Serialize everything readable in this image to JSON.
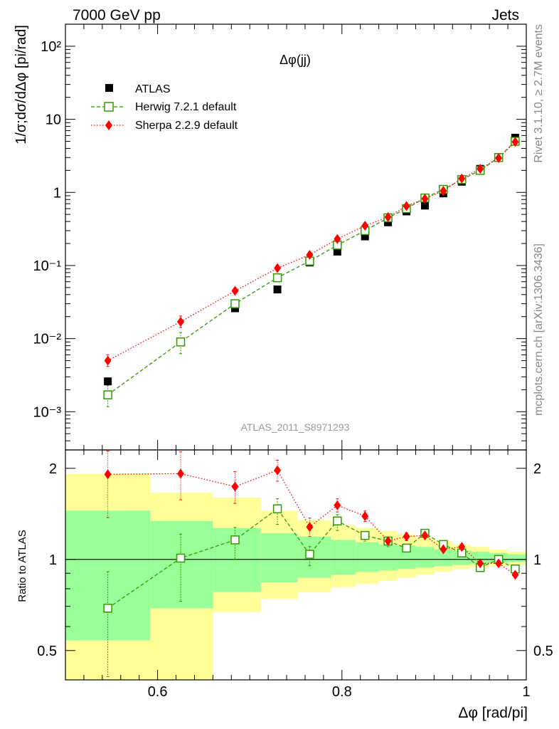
{
  "header": {
    "left": "7000 GeV pp",
    "right": "Jets"
  },
  "side_text": {
    "upper": "Rivet 3.1.10, ≥ 2.7M events",
    "lower": "mcplots.cern.ch [arXiv:1306.3436]"
  },
  "watermark": "ATLAS_2011_S8971293",
  "colors": {
    "atlas": "#000000",
    "herwig": "#339900",
    "sherpa": "#ff0000",
    "band_inner": "#99ff99",
    "band_outer": "#ffff99"
  },
  "chart_data": [
    {
      "type": "scatter",
      "title": "Δφ(jj)",
      "ylabel": "1/σ;dσ/dΔφ [pi/rad]",
      "yscale": "log",
      "xlim": [
        0.5,
        1.0
      ],
      "ylim": [
        0.0003,
        200
      ],
      "y_ticks": [
        "10⁻³",
        "10⁻²",
        "10⁻¹",
        "1",
        "10",
        "10²"
      ],
      "legend_position": "top-left",
      "x": [
        0.546,
        0.625,
        0.684,
        0.73,
        0.765,
        0.795,
        0.825,
        0.85,
        0.87,
        0.89,
        0.91,
        0.93,
        0.95,
        0.97,
        0.988
      ],
      "series": [
        {
          "name": "ATLAS",
          "values": [
            0.0026,
            0.009,
            0.026,
            0.047,
            0.11,
            0.155,
            0.25,
            0.39,
            0.55,
            0.66,
            0.97,
            1.4,
            2.1,
            3.0,
            5.6
          ]
        },
        {
          "name": "Herwig 7.2.1 default",
          "values": [
            0.0017,
            0.009,
            0.03,
            0.068,
            0.115,
            0.19,
            0.3,
            0.45,
            0.6,
            0.84,
            1.1,
            1.5,
            2.0,
            3.0,
            5.0
          ]
        },
        {
          "name": "Sherpa 2.2.9 default",
          "values": [
            0.005,
            0.017,
            0.045,
            0.092,
            0.14,
            0.23,
            0.35,
            0.46,
            0.65,
            0.82,
            1.05,
            1.55,
            2.1,
            2.95,
            4.9
          ]
        }
      ]
    },
    {
      "type": "scatter",
      "xlabel": "Δφ [rad/pi]",
      "ylabel": "Ratio to ATLAS",
      "xlim": [
        0.5,
        1.0
      ],
      "ylim": [
        0.4,
        2.3
      ],
      "x_ticks": [
        "0.6",
        "0.8",
        "1"
      ],
      "y_ticks": [
        "0.5",
        "1",
        "2"
      ],
      "reference_line": 1,
      "series": [
        {
          "name": "Herwig 7.2.1 default",
          "x": [
            0.546,
            0.625,
            0.684,
            0.73,
            0.765,
            0.795,
            0.825,
            0.85,
            0.87,
            0.89,
            0.91,
            0.93,
            0.95,
            0.97,
            0.988
          ],
          "values": [
            0.69,
            1.01,
            1.16,
            1.47,
            1.04,
            1.34,
            1.2,
            1.15,
            1.09,
            1.22,
            1.12,
            1.05,
            0.94,
            1.0,
            0.93
          ]
        },
        {
          "name": "Sherpa 2.2.9 default",
          "x": [
            0.546,
            0.625,
            0.684,
            0.73,
            0.765,
            0.795,
            0.825,
            0.85,
            0.87,
            0.89,
            0.91,
            0.93,
            0.95,
            0.97,
            0.988
          ],
          "values": [
            1.91,
            1.92,
            1.74,
            1.97,
            1.28,
            1.51,
            1.39,
            1.15,
            1.19,
            1.2,
            1.08,
            1.1,
            0.97,
            0.97,
            0.89
          ]
        }
      ],
      "bands": [
        {
          "x_edges": [
            0.5,
            0.592,
            0.66,
            0.712,
            0.752,
            0.788,
            0.815,
            0.84,
            0.86,
            0.88,
            0.9,
            0.92,
            0.94,
            0.96,
            0.98,
            1.0
          ],
          "inner_low": [
            0.54,
            0.69,
            0.78,
            0.84,
            0.87,
            0.89,
            0.91,
            0.92,
            0.93,
            0.94,
            0.95,
            0.96,
            0.97,
            0.975,
            0.98
          ],
          "inner_high": [
            1.45,
            1.34,
            1.27,
            1.22,
            1.19,
            1.16,
            1.14,
            1.12,
            1.11,
            1.1,
            1.08,
            1.07,
            1.06,
            1.05,
            1.04
          ],
          "outer_low": [
            0.4,
            0.4,
            0.67,
            0.74,
            0.78,
            0.81,
            0.83,
            0.85,
            0.87,
            0.89,
            0.91,
            0.93,
            0.94,
            0.95,
            0.96
          ],
          "outer_high": [
            1.92,
            1.66,
            1.6,
            1.45,
            1.35,
            1.3,
            1.27,
            1.24,
            1.21,
            1.18,
            1.15,
            1.12,
            1.1,
            1.08,
            1.06
          ]
        }
      ]
    }
  ]
}
